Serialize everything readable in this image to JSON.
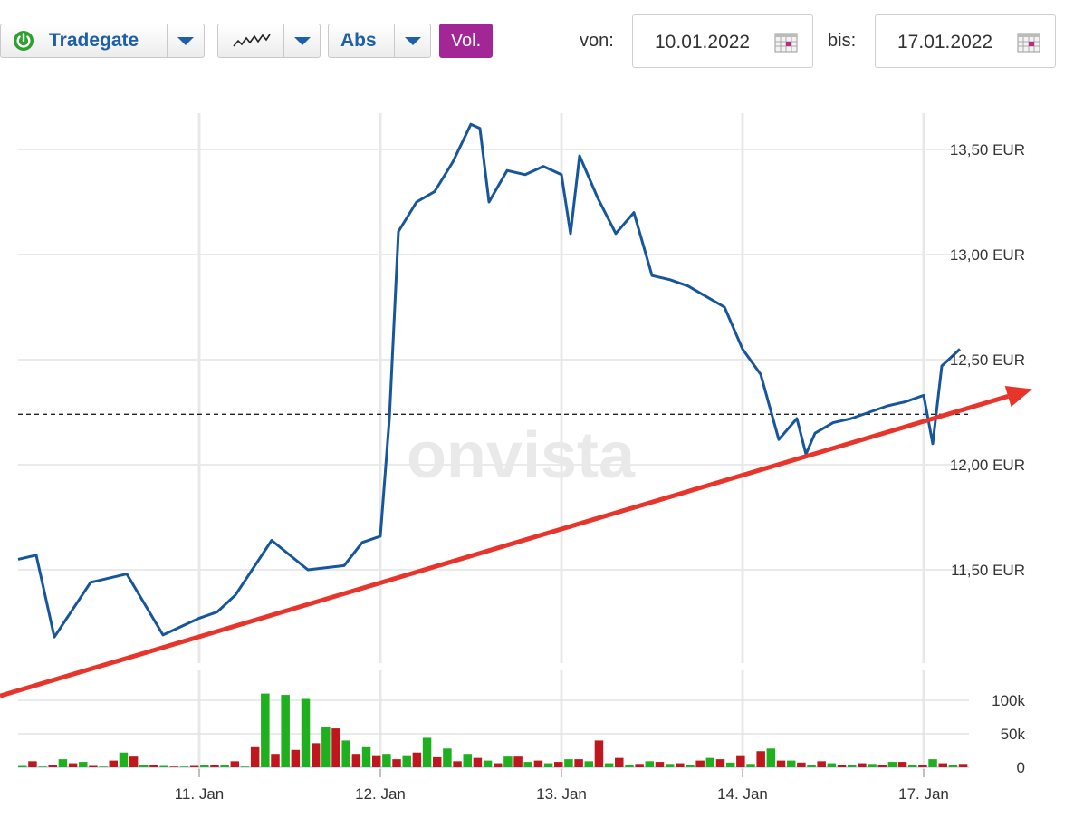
{
  "toolbar": {
    "exchange_label": "Tradegate",
    "mode_label": "Abs",
    "volume_label": "Vol.",
    "from_label": "von:",
    "from_date": "10.01.2022",
    "to_label": "bis:",
    "to_date": "17.01.2022",
    "exchange_status_color": "#2da02d",
    "icons": [
      "power-status-icon",
      "line-chart-type-icon",
      "dropdown-arrow-icon",
      "calendar-icon"
    ]
  },
  "watermark": "onvista",
  "colors": {
    "price_line": "#17569b",
    "volume_up": "#1fb01f",
    "volume_down": "#c0171e",
    "trend_arrow": "#e8352b",
    "reference_line": "#222222",
    "volume_active": "#a32697"
  },
  "chart_data": [
    {
      "type": "line",
      "title": "",
      "series": [
        {
          "x": [
            0.0,
            0.1,
            0.2,
            0.4,
            0.6,
            0.8,
            1.0,
            1.1,
            1.2,
            1.4,
            1.6,
            1.8,
            1.9,
            2.0,
            2.05,
            2.1,
            2.2,
            2.3,
            2.4,
            2.5,
            2.55,
            2.6,
            2.7,
            2.8,
            2.9,
            3.0,
            3.05,
            3.1,
            3.2,
            3.3,
            3.4,
            3.5,
            3.6,
            3.7,
            3.8,
            3.9,
            4.0,
            4.1,
            4.2,
            4.3,
            4.35,
            4.4,
            4.5,
            4.6,
            4.7,
            4.8,
            4.9,
            5.0,
            5.05,
            5.1,
            5.2
          ],
          "values": [
            11.55,
            11.57,
            11.18,
            11.44,
            11.48,
            11.19,
            11.27,
            11.3,
            11.38,
            11.64,
            11.5,
            11.52,
            11.63,
            11.66,
            12.22,
            13.11,
            13.25,
            13.3,
            13.44,
            13.62,
            13.6,
            13.25,
            13.4,
            13.38,
            13.42,
            13.38,
            13.1,
            13.47,
            13.27,
            13.1,
            13.2,
            12.9,
            12.88,
            12.85,
            12.8,
            12.75,
            12.55,
            12.43,
            12.12,
            12.22,
            12.05,
            12.15,
            12.2,
            12.22,
            12.25,
            12.28,
            12.3,
            12.33,
            12.1,
            12.47,
            12.55
          ]
        }
      ],
      "x_tick_labels": [
        "11. Jan",
        "12. Jan",
        "13. Jan",
        "14. Jan",
        "17. Jan"
      ],
      "y_tick_labels": [
        "11,50 EUR",
        "12,00 EUR",
        "12,50 EUR",
        "13,00 EUR",
        "13,50 EUR"
      ],
      "y_ticks": [
        11.5,
        12.0,
        12.5,
        13.0,
        13.5
      ],
      "ylim": [
        11.0,
        13.6
      ],
      "reference_level": 12.24,
      "trendline": {
        "from": [
          -0.1,
          10.9
        ],
        "to": [
          5.6,
          12.36
        ]
      },
      "grid": true
    },
    {
      "type": "bar",
      "title": "",
      "series": [
        {
          "name": "",
          "up": [
            2000,
            1000,
            12000,
            8000,
            1000,
            22000,
            3000,
            2000,
            1000,
            4000,
            3000,
            1000,
            110000,
            108000,
            102000,
            60000,
            40000,
            30000,
            20000,
            18000,
            44000,
            28000,
            20000,
            10000,
            16000,
            8000,
            6000,
            12000,
            9000,
            6000,
            4000,
            9000,
            5000,
            3000,
            14000,
            7000,
            5000,
            28000,
            10000,
            4000,
            6000,
            3000,
            5000,
            8000,
            4000,
            12000,
            3000
          ],
          "down": [
            9000,
            4000,
            6000,
            2000,
            10000,
            16000,
            3000,
            1000,
            2000,
            4000,
            9000,
            30000,
            20000,
            26000,
            36000,
            58000,
            20000,
            18000,
            12000,
            22000,
            15000,
            9000,
            14000,
            6000,
            16000,
            10000,
            8000,
            12000,
            40000,
            14000,
            5000,
            8000,
            6000,
            10000,
            12000,
            18000,
            24000,
            10000,
            7000,
            9000,
            4000,
            6000,
            3000,
            8000,
            4000,
            6000,
            5000
          ]
        }
      ],
      "y_tick_labels": [
        "0",
        "50k",
        "100k"
      ],
      "y_ticks": [
        0,
        50000,
        100000
      ],
      "ylim": [
        0,
        140000
      ],
      "x_tick_labels": [
        "11. Jan",
        "12. Jan",
        "13. Jan",
        "14. Jan",
        "17. Jan"
      ],
      "grid": true
    }
  ]
}
